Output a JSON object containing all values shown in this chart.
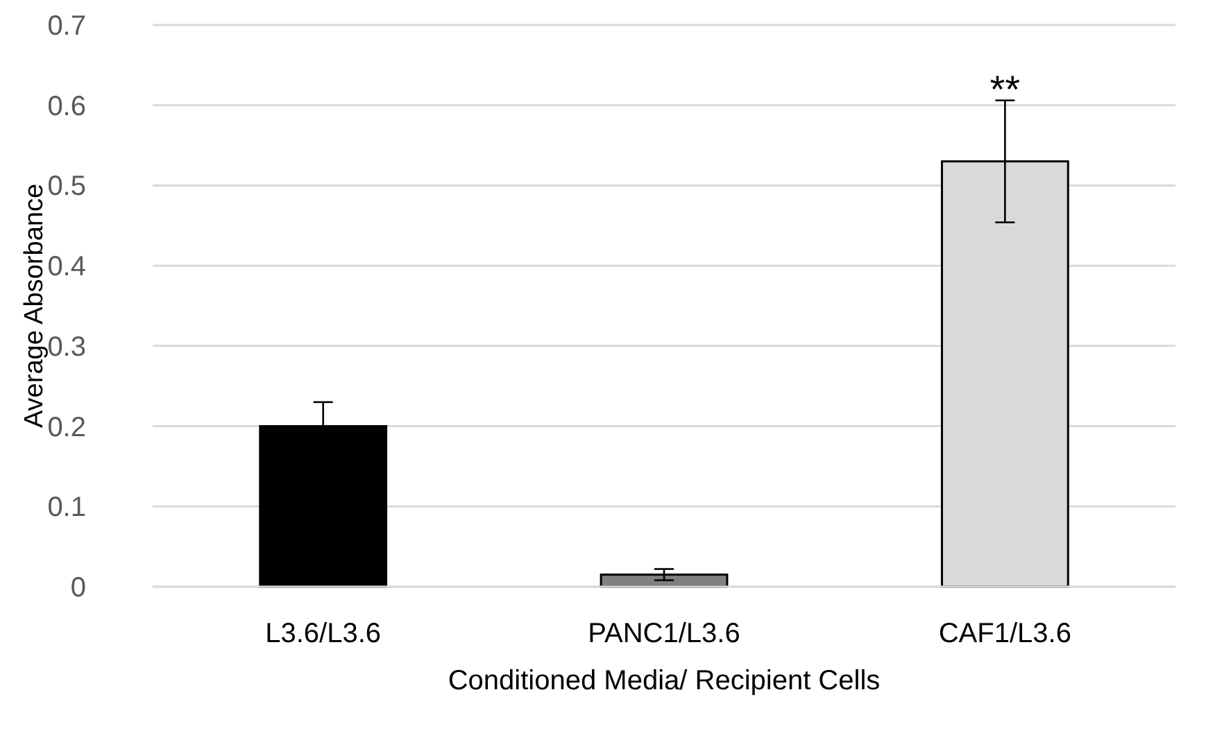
{
  "chart_data": {
    "type": "bar",
    "xlabel": "Conditioned Media/ Recipient Cells",
    "ylabel": "Average Absorbance",
    "categories": [
      "L3.6/L3.6",
      "PANC1/L3.6",
      "CAF1/L3.6"
    ],
    "values": [
      0.2,
      0.015,
      0.53
    ],
    "colors": [
      "#000000",
      "#808080",
      "#d9d9d9"
    ],
    "errors": [
      0.03,
      0.007,
      0.076
    ],
    "ylim": [
      0,
      0.7
    ],
    "yticks": [
      0,
      0.1,
      0.2,
      0.3,
      0.4,
      0.5,
      0.6,
      0.7
    ],
    "grid": "y",
    "annotations": [
      "**"
    ]
  }
}
